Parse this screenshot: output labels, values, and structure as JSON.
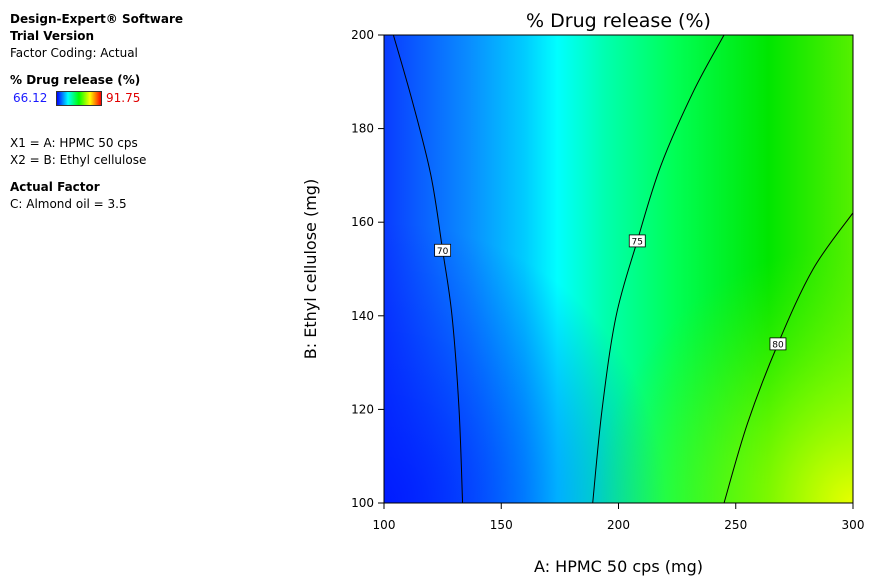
{
  "sidebar": {
    "app_name": "Design-Expert® Software",
    "edition": "Trial Version",
    "factor_coding": "Factor Coding: Actual",
    "response_label": "% Drug release (%)",
    "response_min": "66.12",
    "response_max": "91.75",
    "factor_x1": "X1 = A: HPMC 50 cps",
    "factor_x2": "X2 = B: Ethyl cellulose",
    "actual_factor_heading": "Actual Factor",
    "actual_factor_value": "C: Almond oil = 3.5"
  },
  "colors": {
    "scale_low": "#0000ff",
    "scale_mid_low": "#00ffff",
    "scale_mid": "#00ff00",
    "scale_high": "#ffff00",
    "scale_top": "#ff0000",
    "min_label": "#1a1aff",
    "max_label": "#e00000"
  },
  "chart_data": {
    "type": "contour",
    "title": "% Drug release (%)",
    "xlabel": "A: HPMC 50 cps (mg)",
    "ylabel": "B: Ethyl cellulose (mg)",
    "xlim": [
      100,
      300
    ],
    "ylim": [
      100,
      200
    ],
    "xticks": [
      100,
      150,
      200,
      250,
      300
    ],
    "yticks": [
      100,
      120,
      140,
      160,
      180,
      200
    ],
    "colorscale_range": [
      66.12,
      91.75
    ],
    "contours": [
      {
        "level": 70,
        "label": "70",
        "label_at": [
          125,
          154
        ],
        "points": [
          [
            133.5,
            100
          ],
          [
            132,
            120
          ],
          [
            129,
            140
          ],
          [
            125,
            154
          ],
          [
            120,
            170
          ],
          [
            112,
            186
          ],
          [
            104,
            200
          ]
        ]
      },
      {
        "level": 75,
        "label": "75",
        "label_at": [
          208,
          156
        ],
        "points": [
          [
            189,
            100
          ],
          [
            193,
            120
          ],
          [
            199,
            140
          ],
          [
            208,
            156
          ],
          [
            218,
            172
          ],
          [
            232,
            188
          ],
          [
            245,
            200
          ]
        ]
      },
      {
        "level": 80,
        "label": "80",
        "label_at": [
          268,
          134
        ],
        "points": [
          [
            245,
            100
          ],
          [
            255,
            117
          ],
          [
            268,
            134
          ],
          [
            283,
            150
          ],
          [
            300,
            162
          ]
        ]
      }
    ]
  }
}
